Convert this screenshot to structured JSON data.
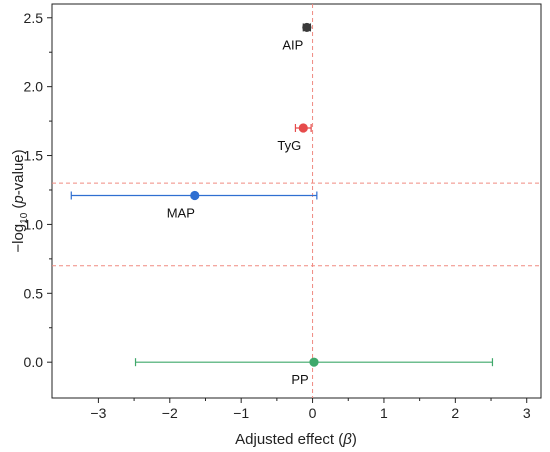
{
  "chart_data": {
    "type": "scatter",
    "title": "",
    "xlabel_main": "Adjusted effect (",
    "xlabel_symbol": "β",
    "xlabel_tail": ")",
    "ylabel_prefix": "−log",
    "ylabel_sub": "10",
    "ylabel_mid": " (",
    "ylabel_italic": "p",
    "ylabel_tail": "-value)",
    "xlim": [
      -3.65,
      3.2
    ],
    "ylim": [
      -0.26,
      2.6
    ],
    "x_ticks": [
      -3,
      -2,
      -1,
      0,
      1,
      2,
      3
    ],
    "x_tick_labels": [
      "−3",
      "−2",
      "−1",
      "0",
      "1",
      "2",
      "3"
    ],
    "y_ticks": [
      0.0,
      0.5,
      1.0,
      1.5,
      2.0,
      2.5
    ],
    "y_tick_labels": [
      "0.0",
      "0.5",
      "1.0",
      "1.5",
      "2.0",
      "2.5"
    ],
    "grid": false,
    "reference_lines": {
      "vertical_x": 0,
      "horizontal_y": [
        1.3,
        0.7
      ],
      "color": "#f08a80",
      "style": "dashed"
    },
    "points": [
      {
        "label": "AIP",
        "x": -0.08,
        "y": 2.43,
        "ci_low": -0.13,
        "ci_high": -0.03,
        "color": "#3a3a3a"
      },
      {
        "label": "TyG",
        "x": -0.13,
        "y": 1.7,
        "ci_low": -0.24,
        "ci_high": -0.02,
        "color": "#e64b4b"
      },
      {
        "label": "MAP",
        "x": -1.65,
        "y": 1.21,
        "ci_low": -3.38,
        "ci_high": 0.06,
        "color": "#2f6fd1"
      },
      {
        "label": "PP",
        "x": 0.02,
        "y": 0.0,
        "ci_low": -2.48,
        "ci_high": 2.52,
        "color": "#3fa86a"
      }
    ]
  }
}
